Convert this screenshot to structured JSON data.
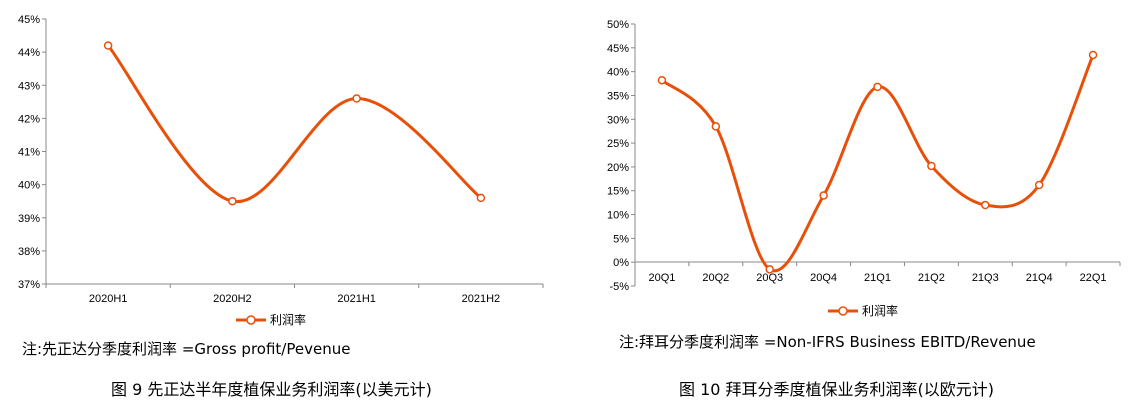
{
  "chart_data": [
    {
      "type": "line",
      "categories": [
        "2020H1",
        "2020H2",
        "2021H1",
        "2021H2"
      ],
      "series": [
        {
          "name": "利润率",
          "values": [
            44.2,
            39.5,
            42.6,
            39.6
          ]
        }
      ],
      "ylim": [
        37,
        45
      ],
      "yticks": [
        "37%",
        "38%",
        "39%",
        "40%",
        "41%",
        "42%",
        "43%",
        "44%",
        "45%"
      ],
      "grid": false,
      "legend": "bottom",
      "color": "#E8500A",
      "note": "注:先正达分季度利润率 =Gross profit/Pevenue",
      "caption": "图 9 先正达半年度植保业务利润率(以美元计)"
    },
    {
      "type": "line",
      "categories": [
        "20Q1",
        "20Q2",
        "20Q3",
        "20Q4",
        "21Q1",
        "21Q2",
        "21Q3",
        "21Q4",
        "22Q1"
      ],
      "series": [
        {
          "name": "利润率",
          "values": [
            38.2,
            28.5,
            -1.5,
            14.0,
            36.8,
            20.2,
            12.0,
            16.2,
            43.5
          ]
        }
      ],
      "ylim": [
        -5,
        50
      ],
      "yticks": [
        "-5%",
        "0%",
        "5%",
        "10%",
        "15%",
        "20%",
        "25%",
        "30%",
        "35%",
        "40%",
        "45%",
        "50%"
      ],
      "grid": false,
      "legend": "bottom",
      "color": "#E8500A",
      "note": "注:拜耳分季度利润率 =Non-IFRS Business EBITD/Revenue",
      "caption": "图 10 拜耳分季度植保业务利润率(以欧元计)"
    }
  ]
}
